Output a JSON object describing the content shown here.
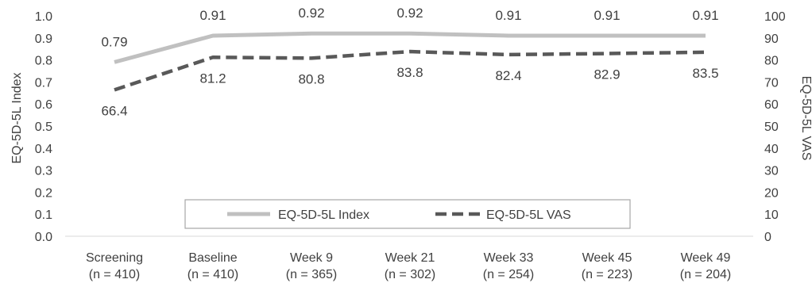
{
  "chart_data": {
    "type": "line",
    "categories": [
      [
        "Screening",
        "(n = 410)"
      ],
      [
        "Baseline",
        "(n = 410)"
      ],
      [
        "Week 9",
        "(n = 365)"
      ],
      [
        "Week 21",
        "(n = 302)"
      ],
      [
        "Week 33",
        "(n = 254)"
      ],
      [
        "Week 45",
        "(n = 223)"
      ],
      [
        "Week 49",
        "(n = 204)"
      ]
    ],
    "y_left": {
      "label": "EQ-5D-5L Index",
      "ylim": [
        0.0,
        1.0
      ],
      "ticks": [
        "0.0",
        "0.1",
        "0.2",
        "0.3",
        "0.4",
        "0.5",
        "0.6",
        "0.7",
        "0.8",
        "0.9",
        "1.0"
      ]
    },
    "y_right": {
      "label": "EQ-5D-5L VAS",
      "ylim": [
        0,
        100
      ],
      "ticks": [
        "0",
        "10",
        "20",
        "30",
        "40",
        "50",
        "60",
        "70",
        "80",
        "90",
        "100"
      ]
    },
    "series": [
      {
        "name": "EQ-5D-5L Index",
        "axis": "left",
        "style": "solid",
        "color": "#c0c0c0",
        "values": [
          0.79,
          0.91,
          0.92,
          0.92,
          0.91,
          0.91,
          0.91
        ],
        "labels": [
          "0.79",
          "0.91",
          "0.92",
          "0.92",
          "0.91",
          "0.91",
          "0.91"
        ],
        "label_position": "above"
      },
      {
        "name": "EQ-5D-5L VAS",
        "axis": "right",
        "style": "dashed",
        "color": "#595959",
        "values": [
          66.4,
          81.2,
          80.8,
          83.8,
          82.4,
          82.9,
          83.5
        ],
        "labels": [
          "66.4",
          "81.2",
          "80.8",
          "83.8",
          "82.4",
          "82.9",
          "83.5"
        ],
        "label_position": "below"
      }
    ],
    "legend": {
      "placement": "bottom-center, inside plot area",
      "border": true
    },
    "grid": false
  }
}
